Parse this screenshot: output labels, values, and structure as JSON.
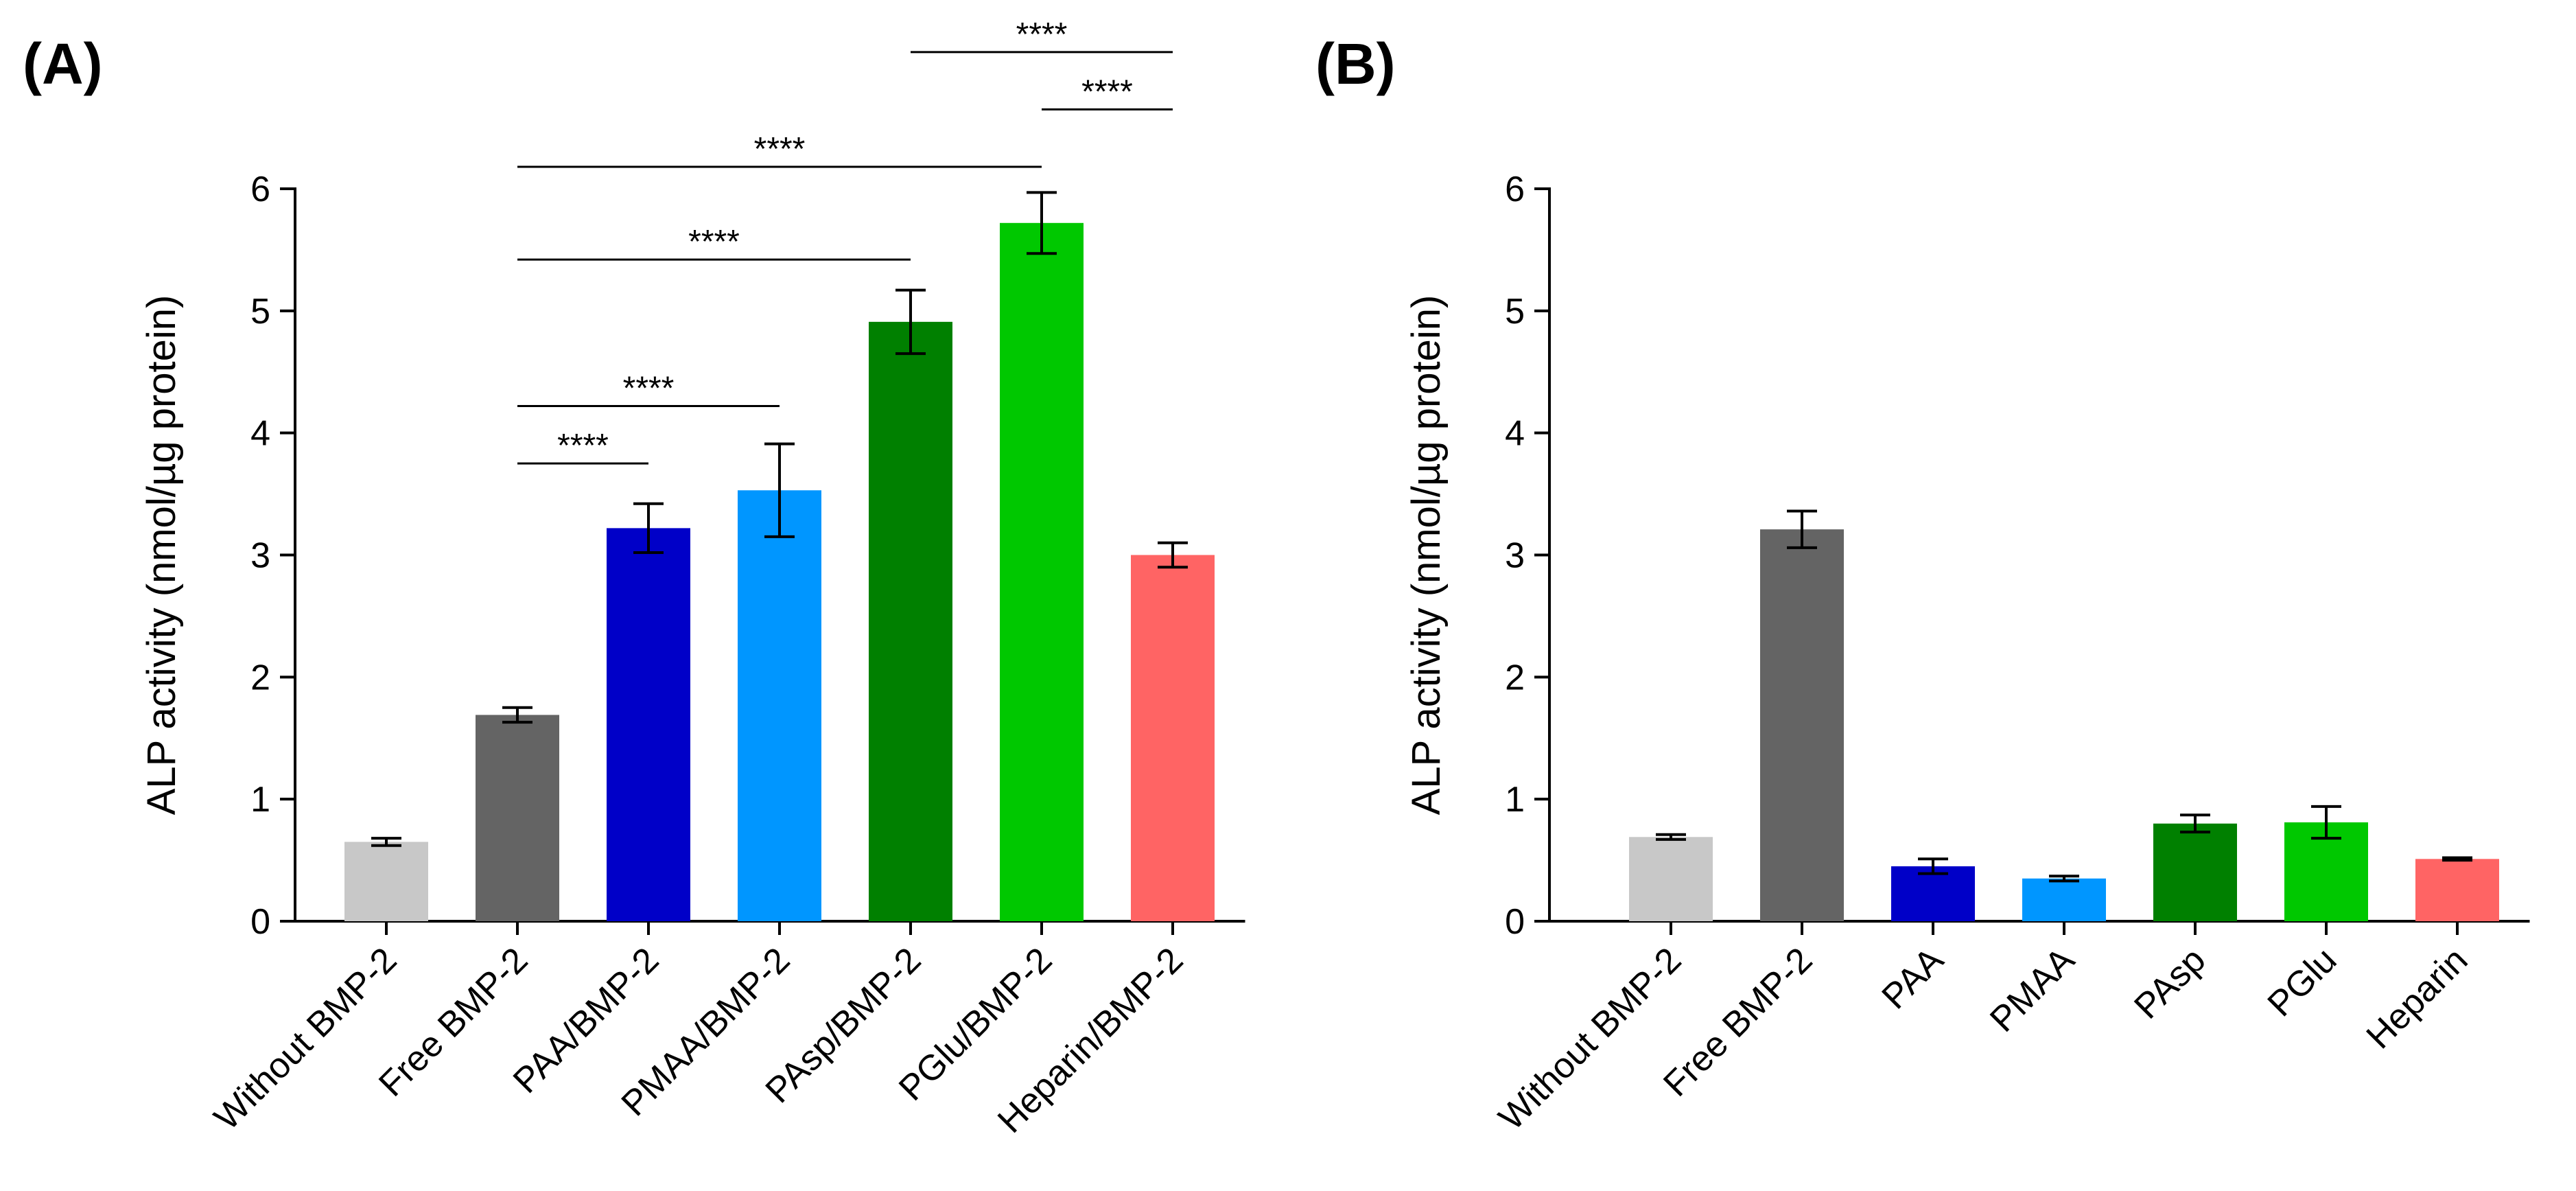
{
  "colors": {
    "bar_colors": [
      "#c8c8c8",
      "#646464",
      "#0000c8",
      "#0096ff",
      "#008000",
      "#00c800",
      "#ff6464"
    ],
    "axis": "#000000",
    "background": "#ffffff"
  },
  "chart_data": [
    {
      "type": "bar",
      "panel_label": "(A)",
      "title": "",
      "xlabel": "",
      "ylabel": "ALP activity (nmol/µg protein)",
      "ylim": [
        0,
        6
      ],
      "yticks": [
        "0",
        "1",
        "2",
        "3",
        "4",
        "5",
        "6"
      ],
      "grid": false,
      "categories": [
        "Without BMP-2",
        "Free BMP-2",
        "PAA/BMP-2",
        "PMAA/BMP-2",
        "PAsp/BMP-2",
        "PGlu/BMP-2",
        "Heparin/BMP-2"
      ],
      "values": [
        0.65,
        1.69,
        3.22,
        3.53,
        4.91,
        5.72,
        3.0
      ],
      "errors": [
        0.03,
        0.06,
        0.2,
        0.38,
        0.26,
        0.25,
        0.1
      ],
      "significance": [
        {
          "from": 1,
          "to": 2,
          "label": "****",
          "y": 3.75
        },
        {
          "from": 1,
          "to": 3,
          "label": "****",
          "y": 4.22
        },
        {
          "from": 1,
          "to": 4,
          "label": "****",
          "y": 5.42
        },
        {
          "from": 1,
          "to": 5,
          "label": "****",
          "y": 6.18
        },
        {
          "from": 5,
          "to": 6,
          "label": "****",
          "y": 6.65
        },
        {
          "from": 4,
          "to": 6,
          "label": "****",
          "y": 7.12
        }
      ]
    },
    {
      "type": "bar",
      "panel_label": "(B)",
      "title": "",
      "xlabel": "",
      "ylabel": "ALP activity (nmol/µg protein)",
      "ylim": [
        0,
        6
      ],
      "yticks": [
        "0",
        "1",
        "2",
        "3",
        "4",
        "5",
        "6"
      ],
      "grid": false,
      "categories": [
        "Without BMP-2",
        "Free BMP-2",
        "PAA",
        "PMAA",
        "PAsp",
        "PGlu",
        "Heparin"
      ],
      "values": [
        0.69,
        3.21,
        0.45,
        0.35,
        0.8,
        0.81,
        0.51
      ],
      "errors": [
        0.02,
        0.15,
        0.06,
        0.02,
        0.07,
        0.13,
        0.01
      ],
      "significance": []
    }
  ]
}
